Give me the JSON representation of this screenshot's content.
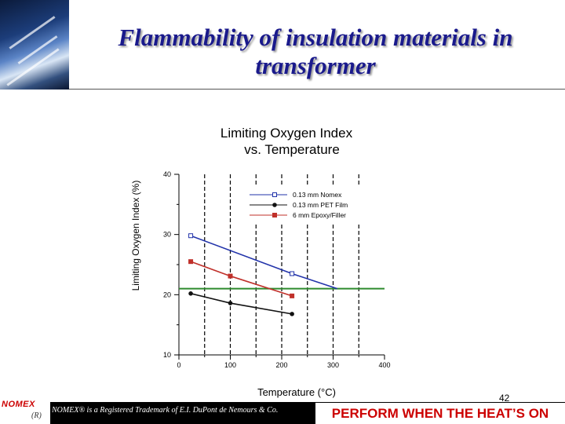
{
  "slide": {
    "title": "Flammability of insulation materials in transformer",
    "number": "42",
    "trademark_note": "NOMEX® is a Registered Trademark of E.I. DuPont de Nemours & Co.",
    "slogan": "PERFORM WHEN THE HEAT’S ON",
    "logo_text": "NOMEX",
    "logo_mark": "(R)"
  },
  "chart_data": {
    "type": "line",
    "title": "Limiting Oxygen Index vs. Temperature",
    "xlabel": "Temperature (°C)",
    "ylabel": "Limiting Oxygen Index (%)",
    "xlim": [
      0,
      400
    ],
    "ylim": [
      10,
      40
    ],
    "xticks": [
      0,
      100,
      200,
      300,
      400
    ],
    "yticks": [
      10,
      20,
      30,
      40
    ],
    "legend_position": "top-right",
    "reference_line": {
      "y": 21,
      "color": "#2e8b2e"
    },
    "series": [
      {
        "name": "0.13 mm Nomex",
        "color": "#2233aa",
        "marker": "open-square",
        "x": [
          23,
          220
        ],
        "y": [
          29.8,
          23.5
        ],
        "trend_end": [
          308,
          21
        ]
      },
      {
        "name": "0.13 mm PET Film",
        "color": "#111111",
        "marker": "filled-circle",
        "x": [
          23,
          100,
          220
        ],
        "y": [
          20.2,
          18.6,
          16.8
        ]
      },
      {
        "name": "6 mm Epoxy/Filler",
        "color": "#c0302a",
        "marker": "filled-square",
        "x": [
          23,
          100,
          220
        ],
        "y": [
          25.5,
          23.1,
          19.8
        ]
      }
    ]
  }
}
